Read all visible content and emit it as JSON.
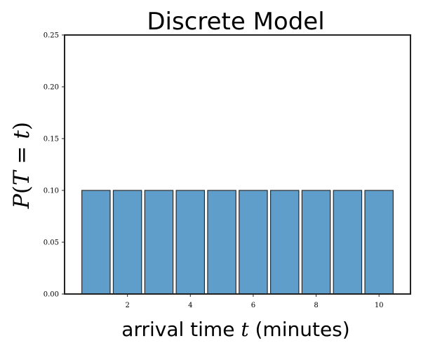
{
  "chart_data": {
    "type": "bar",
    "title": "Discrete Model",
    "xlabel_pre": "arrival time ",
    "xlabel_var": "t",
    "xlabel_post": " (minutes)",
    "ylabel_a": "P",
    "ylabel_b": "(",
    "ylabel_c": "T",
    "ylabel_d": " = ",
    "ylabel_e": "t",
    "ylabel_f": ")",
    "x": [
      1,
      2,
      3,
      4,
      5,
      6,
      7,
      8,
      9,
      10
    ],
    "values": [
      0.1,
      0.1,
      0.1,
      0.1,
      0.1,
      0.1,
      0.1,
      0.1,
      0.1,
      0.1
    ],
    "xlim": [
      0,
      11
    ],
    "ylim": [
      0,
      0.25
    ],
    "xticks": [
      2,
      4,
      6,
      8,
      10
    ],
    "xtick_labels": [
      "2",
      "4",
      "6",
      "8",
      "10"
    ],
    "yticks": [
      0,
      0.05,
      0.1,
      0.15,
      0.2,
      0.25
    ],
    "ytick_labels": [
      "0.00",
      "0.05",
      "0.10",
      "0.15",
      "0.20",
      "0.25"
    ],
    "bar_color": "#5f9ecb",
    "edge_color": "#2b2b2b",
    "grid": false
  }
}
